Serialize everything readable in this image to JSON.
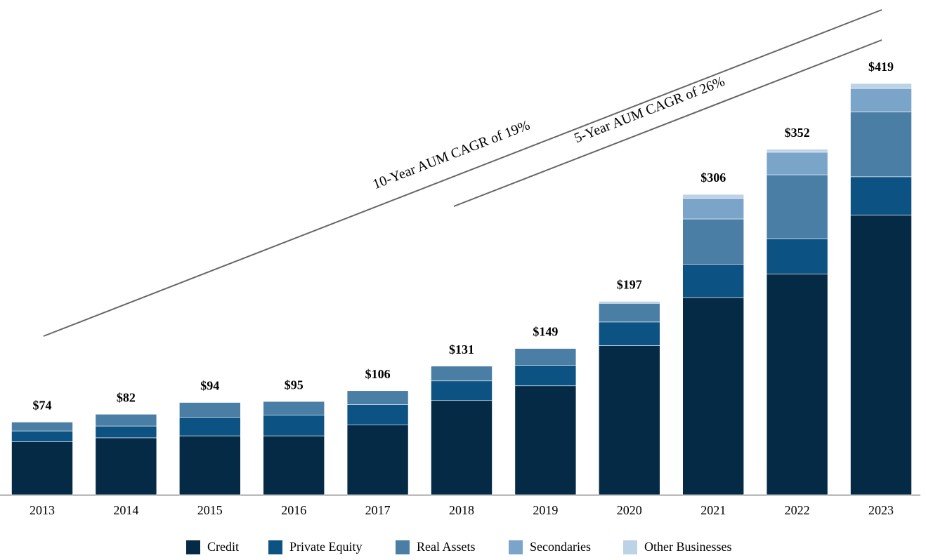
{
  "chart_data": {
    "type": "stacked-bar",
    "categories": [
      "2013",
      "2014",
      "2015",
      "2016",
      "2017",
      "2018",
      "2019",
      "2020",
      "2021",
      "2022",
      "2023"
    ],
    "series": [
      {
        "name": "Credit",
        "color": "#052a45",
        "values": [
          54,
          58,
          60,
          60,
          71,
          96,
          111,
          152,
          201,
          225,
          285
        ]
      },
      {
        "name": "Private Equity",
        "color": "#0c5383",
        "values": [
          11,
          12,
          19,
          21,
          21,
          20,
          21,
          24,
          34,
          36,
          39
        ]
      },
      {
        "name": "Real Assets",
        "color": "#4a7ea5",
        "values": [
          9,
          12,
          15,
          14,
          14,
          15,
          17,
          19,
          46,
          65,
          66
        ]
      },
      {
        "name": "Secondaries",
        "color": "#7ba4c9",
        "values": [
          null,
          null,
          null,
          null,
          null,
          null,
          null,
          null,
          21,
          23,
          24
        ]
      },
      {
        "name": "Other Businesses",
        "color": "#bcd2e6",
        "values": [
          null,
          null,
          null,
          null,
          null,
          null,
          null,
          2,
          4,
          3,
          5
        ]
      }
    ],
    "totals": [
      74,
      82,
      94,
      95,
      106,
      131,
      149,
      197,
      306,
      352,
      419
    ],
    "total_labels": [
      "$74",
      "$82",
      "$94",
      "$95",
      "$106",
      "$131",
      "$149",
      "$197",
      "$306",
      "$352",
      "$419"
    ],
    "annotations": [
      "10-Year AUM CAGR of 19%",
      "5-Year AUM CAGR of 26%"
    ],
    "legend_position": "bottom"
  }
}
